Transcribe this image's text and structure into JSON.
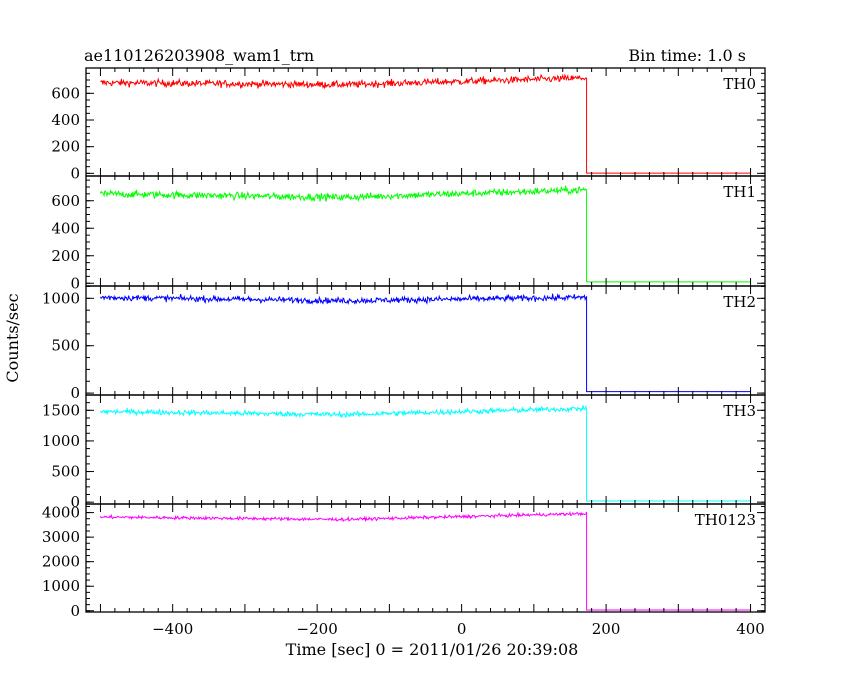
{
  "header": {
    "obs_id": "ae110126203908_wam1_trn",
    "bin_time": "Bin time: 1.0 s"
  },
  "chart_data": {
    "type": "line",
    "xlabel": "Time [sec] 0 = 2011/01/26 20:39:08",
    "ylabel": "Counts/sec",
    "xlim": [
      -520,
      420
    ],
    "xticks": [
      -400,
      -200,
      0,
      200,
      400
    ],
    "x_start": -500,
    "x_drop": 173,
    "x_end": 400,
    "bin": 1.0,
    "panels": [
      {
        "label": "TH0",
        "color": "#ff0000",
        "ylim": [
          -20,
          790
        ],
        "yticks": [
          0,
          200,
          400,
          600
        ],
        "level_start": 680,
        "level_mid": 665,
        "level_end": 715,
        "noise": 25,
        "after": 2
      },
      {
        "label": "TH1",
        "color": "#00ff00",
        "ylim": [
          -20,
          780
        ],
        "yticks": [
          0,
          200,
          400,
          600
        ],
        "level_start": 650,
        "level_mid": 625,
        "level_end": 680,
        "noise": 25,
        "after": 10
      },
      {
        "label": "TH2",
        "color": "#0000ff",
        "ylim": [
          -20,
          1130
        ],
        "yticks": [
          0,
          500,
          1000
        ],
        "level_start": 1010,
        "level_mid": 975,
        "level_end": 1010,
        "noise": 30,
        "after": 15
      },
      {
        "label": "TH3",
        "color": "#00ffff",
        "ylim": [
          -30,
          1750
        ],
        "yticks": [
          0,
          500,
          1000,
          1500
        ],
        "level_start": 1480,
        "level_mid": 1430,
        "level_end": 1530,
        "noise": 40,
        "after": 20
      },
      {
        "label": "TH0123",
        "color": "#ff00ff",
        "ylim": [
          -50,
          4350
        ],
        "yticks": [
          0,
          1000,
          2000,
          3000,
          4000
        ],
        "level_start": 3820,
        "level_mid": 3720,
        "level_end": 3960,
        "noise": 60,
        "after": 30
      }
    ]
  }
}
